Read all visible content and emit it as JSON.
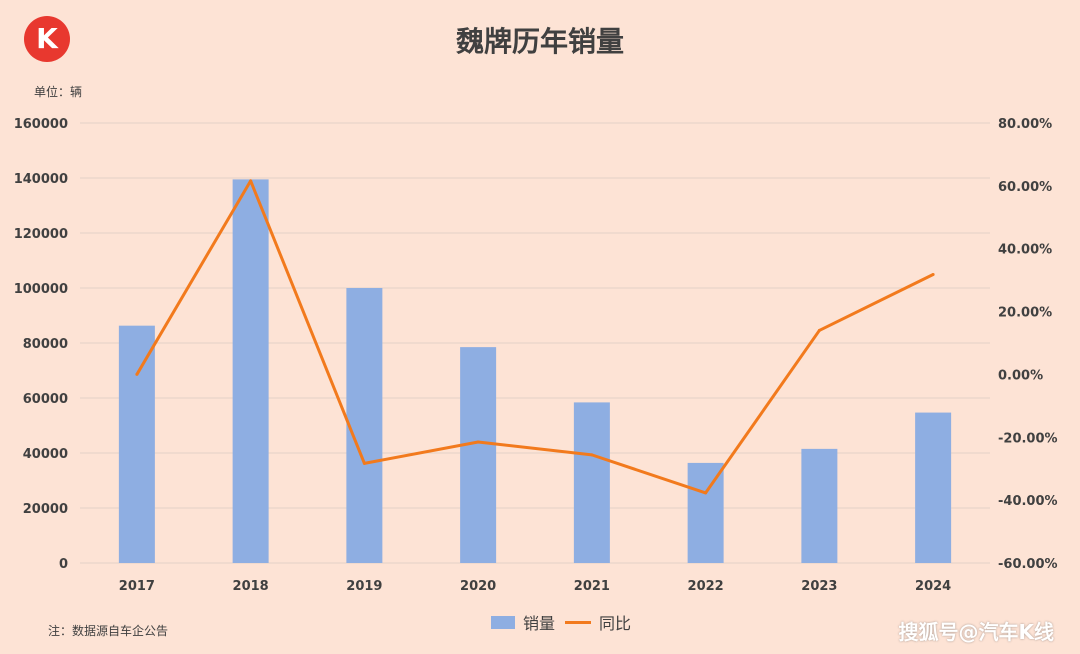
{
  "logo": {
    "text": "K"
  },
  "title": "魏牌历年销量",
  "unit_label": "单位：辆",
  "note": "注：数据源自车企公告",
  "watermark": "搜狐号@汽车K线",
  "colors": {
    "background": "#FDE3D5",
    "bar": "#8EAEE2",
    "line": "#F27A1D",
    "grid": "#E2D2C8"
  },
  "chart_data": {
    "type": "bar",
    "title": "魏牌历年销量",
    "categories": [
      "2017",
      "2018",
      "2019",
      "2020",
      "2021",
      "2022",
      "2023",
      "2024"
    ],
    "series": [
      {
        "name": "销量",
        "type": "bar",
        "axis": "left",
        "values": [
          86300,
          139500,
          100000,
          78500,
          58400,
          36400,
          41500,
          54700
        ]
      },
      {
        "name": "同比",
        "type": "line",
        "axis": "right",
        "values": [
          0.0,
          61.6,
          -28.3,
          -21.5,
          -25.6,
          -37.7,
          14.0,
          31.8
        ]
      }
    ],
    "y_left": {
      "range": [
        0,
        160000
      ],
      "ticks": [
        "0",
        "20000",
        "40000",
        "60000",
        "80000",
        "100000",
        "120000",
        "140000",
        "160000"
      ]
    },
    "y_right": {
      "range": [
        -60,
        80
      ],
      "ticks": [
        "-60.00%",
        "-40.00%",
        "-20.00%",
        "0.00%",
        "20.00%",
        "40.00%",
        "60.00%",
        "80.00%"
      ]
    },
    "grid": true,
    "legend_position": "bottom"
  },
  "legend": {
    "bar_label": "销量",
    "line_label": "同比"
  }
}
